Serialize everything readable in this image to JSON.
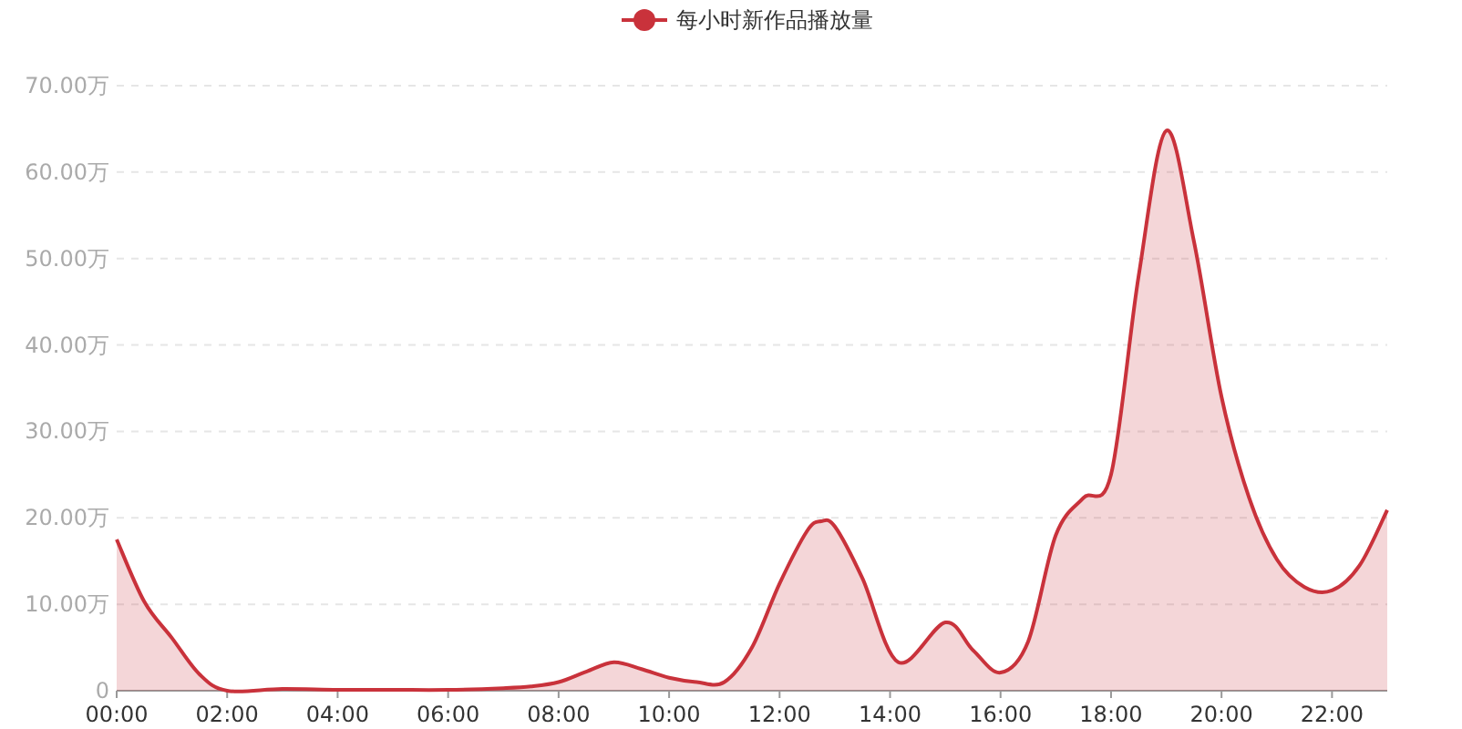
{
  "chart_data": {
    "type": "area",
    "x": [
      0,
      0.5,
      1,
      1.5,
      2,
      3,
      4,
      5,
      6,
      7,
      7.5,
      8,
      8.5,
      9,
      9.5,
      10,
      10.5,
      11,
      11.5,
      12,
      12.5,
      12.75,
      13,
      13.5,
      14.15,
      15,
      15.5,
      16,
      16.5,
      17,
      17.5,
      18,
      18.5,
      19,
      19.5,
      20,
      20.5,
      21,
      21.5,
      22,
      22.5,
      23
    ],
    "series": [
      {
        "name": "每小时新作品播放量",
        "color": "#c9323b",
        "values": [
          17.5,
          10.3,
          6.1,
          1.9,
          0,
          0.2,
          0.1,
          0.1,
          0.1,
          0.3,
          0.5,
          1.0,
          2.2,
          3.3,
          2.5,
          1.5,
          1.0,
          1.0,
          5,
          12.4,
          18.5,
          19.6,
          19.0,
          13,
          3.3,
          7.9,
          4.7,
          2.1,
          5.7,
          18,
          22.3,
          25,
          48,
          64.8,
          52,
          34,
          22.3,
          15.2,
          12,
          11.6,
          14.5,
          20.9
        ]
      }
    ],
    "xlim": [
      0,
      23
    ],
    "xticks": [
      {
        "value": 0,
        "label": "00:00"
      },
      {
        "value": 2,
        "label": "02:00"
      },
      {
        "value": 4,
        "label": "04:00"
      },
      {
        "value": 6,
        "label": "06:00"
      },
      {
        "value": 8,
        "label": "08:00"
      },
      {
        "value": 10,
        "label": "10:00"
      },
      {
        "value": 12,
        "label": "12:00"
      },
      {
        "value": 14,
        "label": "14:00"
      },
      {
        "value": 16,
        "label": "16:00"
      },
      {
        "value": 18,
        "label": "18:00"
      },
      {
        "value": 20,
        "label": "20:00"
      },
      {
        "value": 22,
        "label": "22:00"
      }
    ],
    "ylim": [
      0,
      70
    ],
    "yticks": [
      0,
      {
        "value": 10,
        "label": "10.00万"
      },
      {
        "value": 20,
        "label": "20.00万"
      },
      {
        "value": 30,
        "label": "30.00万"
      },
      {
        "value": 40,
        "label": "40.00万"
      },
      {
        "value": 50,
        "label": "50.00万"
      },
      {
        "value": 60,
        "label": "60.00万"
      },
      {
        "value": 70,
        "label": "70.00万"
      }
    ],
    "grid": "y",
    "legend": "top",
    "marker": "none",
    "line_style": "solid"
  }
}
